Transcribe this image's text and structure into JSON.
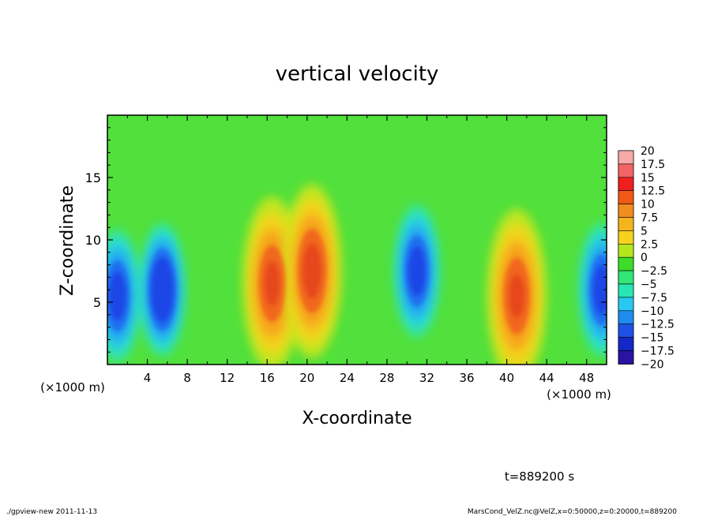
{
  "chart_data": {
    "type": "heatmap",
    "title": "vertical velocity",
    "xlabel": "X-coordinate",
    "ylabel": "Z-coordinate",
    "x_unit_left": "(×1000 m)",
    "x_unit_right": "(×1000 m)",
    "xlim": [
      0,
      50
    ],
    "ylim": [
      0,
      20
    ],
    "xticks": [
      4,
      8,
      12,
      16,
      20,
      24,
      28,
      32,
      36,
      40,
      44,
      48
    ],
    "yticks": [
      5,
      10,
      15
    ],
    "colorbar": {
      "levels": [
        "20",
        "17.5",
        "15",
        "12.5",
        "10",
        "7.5",
        "5",
        "2.5",
        "0",
        "-2.5",
        "-5",
        "-7.5",
        "-10",
        "-12.5",
        "-15",
        "-17.5",
        "-20"
      ],
      "colors": [
        "#f7a8a8",
        "#f26464",
        "#f01e1e",
        "#f05a14",
        "#f28c1e",
        "#f5b41e",
        "#f5d21e",
        "#b4e61e",
        "#3cdc28",
        "#32e678",
        "#28e6b4",
        "#28c8f0",
        "#1e8cf0",
        "#1e50e6",
        "#1428c8",
        "#2814a0",
        "#6e14b4"
      ]
    },
    "features": [
      {
        "kind": "updraft",
        "x": 16.5,
        "z": 6.5,
        "peak": 13
      },
      {
        "kind": "updraft",
        "x": 20.5,
        "z": 7.5,
        "peak": 12
      },
      {
        "kind": "updraft",
        "x": 41,
        "z": 5.5,
        "peak": 13
      },
      {
        "kind": "downdraft",
        "x": 1,
        "z": 5.5,
        "peak": -11
      },
      {
        "kind": "downdraft",
        "x": 5.5,
        "z": 6,
        "peak": -9
      },
      {
        "kind": "downdraft",
        "x": 31,
        "z": 7.5,
        "peak": -11
      },
      {
        "kind": "downdraft",
        "x": 49.5,
        "z": 6,
        "peak": -11
      }
    ],
    "grid": false
  },
  "footer": {
    "time_label": "t=889200 s",
    "program": "./gpview-new   2011-11-13",
    "source": "MarsCond_VelZ.nc@VelZ,x=0:50000,z=0:20000,t=889200"
  }
}
